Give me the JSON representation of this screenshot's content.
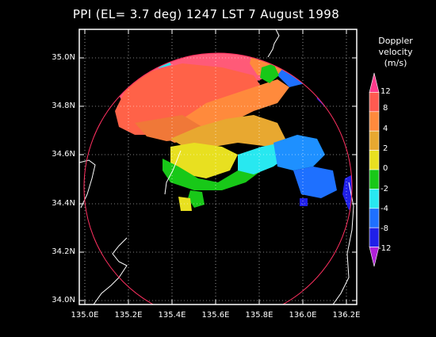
{
  "title": "PPI (EL= 3.7 deg)  1247 LST 7 August 1998",
  "y_ticks": [
    "35.0N",
    "34.8N",
    "34.6N",
    "34.4N",
    "34.2N",
    "34.0N"
  ],
  "x_ticks": [
    "135.0E",
    "135.2E",
    "135.4E",
    "135.6E",
    "135.8E",
    "136.0E",
    "136.2E"
  ],
  "colorbar": {
    "title_line1": "Doppler",
    "title_line2": "velocity",
    "units": "(m/s)",
    "labels": [
      "12",
      "8",
      "4",
      "2",
      "0",
      "-2",
      "-4",
      "-8",
      "-12"
    ],
    "colors": [
      "#ff3a8c",
      "#ff5a50",
      "#ff8a3c",
      "#e8a830",
      "#e8e020",
      "#18c818",
      "#28e8f0",
      "#1e70ff",
      "#2020e8",
      "#b020d8"
    ]
  },
  "map": {
    "lat_range": [
      34.0,
      35.1
    ],
    "lon_range": [
      134.95,
      136.3
    ],
    "range_ring_color": "#ff3060",
    "coast_color": "#ffffff",
    "grid": true
  }
}
